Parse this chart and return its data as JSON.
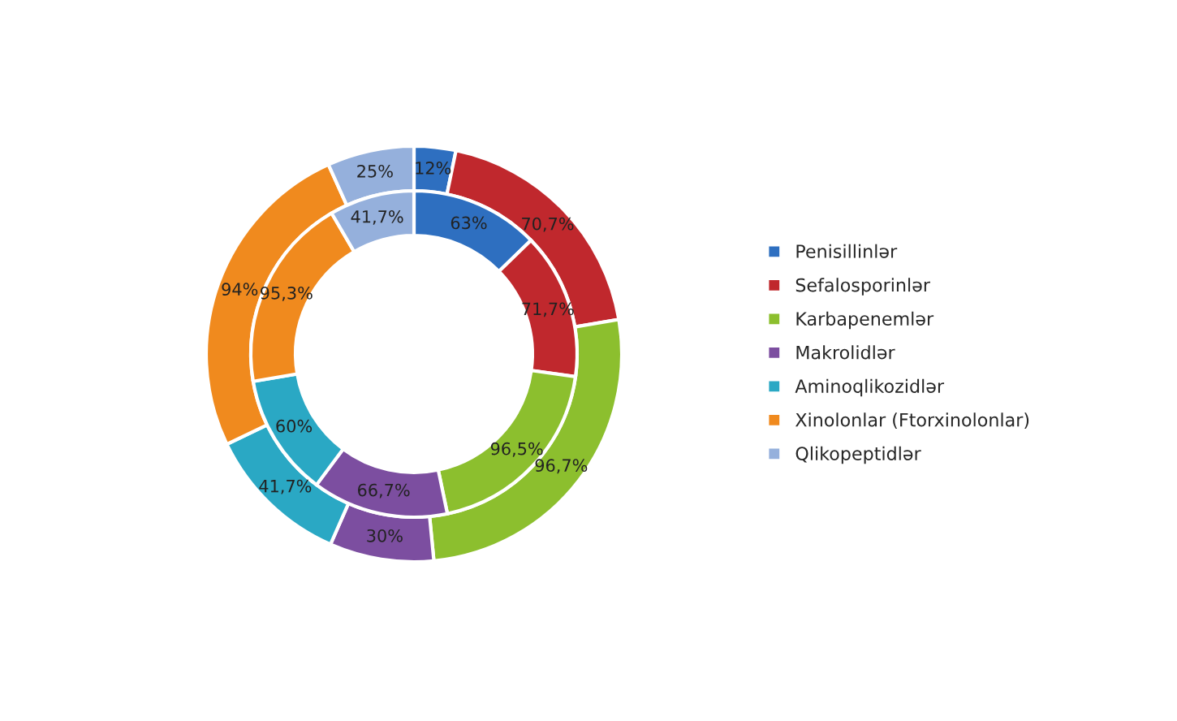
{
  "chart_data": {
    "type": "donut",
    "categories": [
      "Penisillinlər",
      "Sefalosporinlər",
      "Karbapenemlər",
      "Makrolidlər",
      "Aminoqlikozidlər",
      "Xinolonlar (Ftorxinolonlar)",
      "Qlikopeptidlər"
    ],
    "colors": [
      "#2e6fc0",
      "#c0282d",
      "#8cbf2e",
      "#7c4ea0",
      "#2aa8c4",
      "#f08a1e",
      "#95b0dc"
    ],
    "series": [
      {
        "values": [
          12,
          70.7,
          96.7,
          30,
          41.7,
          94,
          25
        ],
        "value_labels": [
          "12%",
          "70,7%",
          "96,7%",
          "30%",
          "41,7%",
          "94%",
          "25%"
        ]
      },
      {
        "values": [
          63,
          71.7,
          96.5,
          66.7,
          60,
          95.3,
          41.7
        ],
        "value_labels": [
          "63%",
          "71,7%",
          "96,5%",
          "66,7%",
          "60%",
          "95,3%",
          "41,7%"
        ]
      }
    ],
    "legend": "right"
  }
}
